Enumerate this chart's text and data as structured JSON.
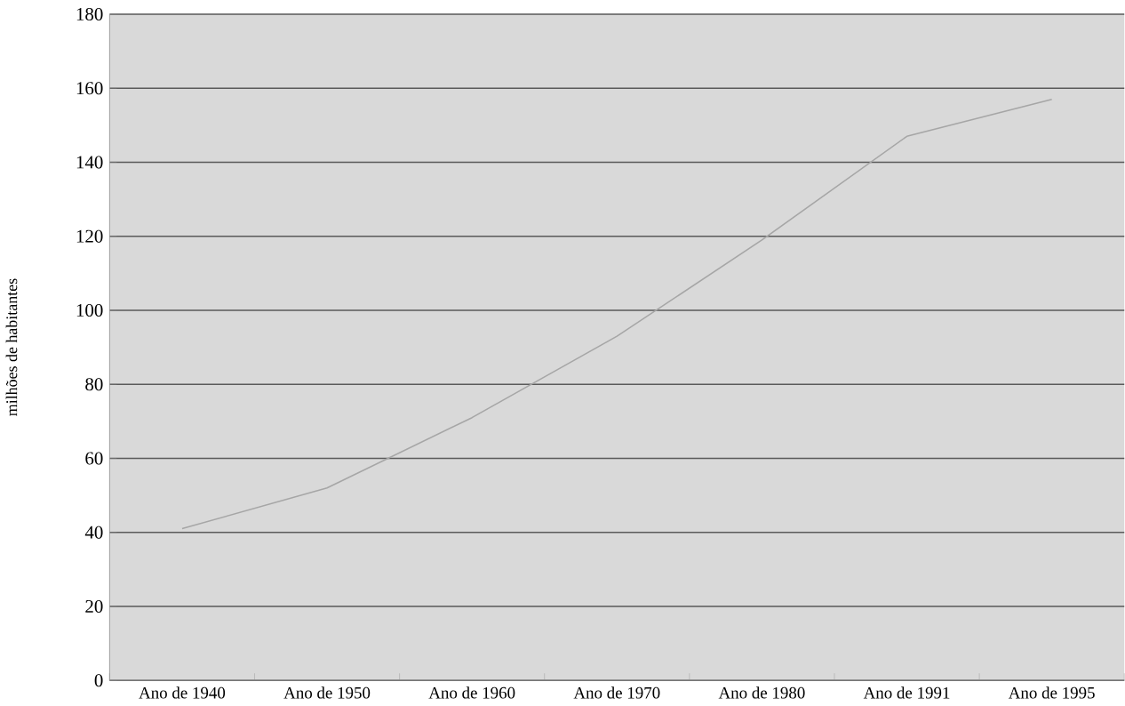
{
  "chart_data": {
    "type": "line",
    "ylabel": "milhões de habitantes",
    "categories": [
      "Ano de 1940",
      "Ano de 1950",
      "Ano de 1960",
      "Ano de 1970",
      "Ano de 1980",
      "Ano de 1991",
      "Ano de 1995"
    ],
    "series": [
      {
        "color": "#a6a6a6",
        "values": [
          41,
          52,
          71,
          93,
          119,
          147,
          157
        ]
      }
    ],
    "ylim": [
      0,
      180
    ],
    "yticks": [
      0,
      20,
      40,
      60,
      80,
      100,
      120,
      140,
      160,
      180
    ],
    "grid": "y",
    "marker": "none",
    "line_style": "solid"
  }
}
